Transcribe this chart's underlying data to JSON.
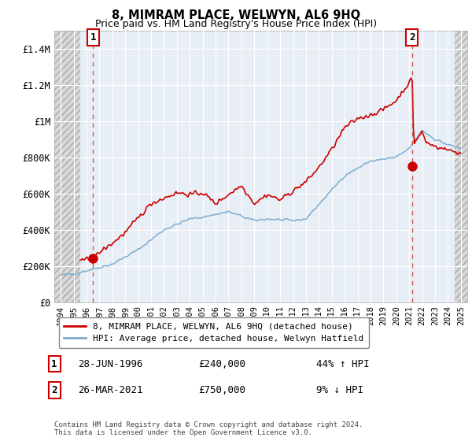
{
  "title": "8, MIMRAM PLACE, WELWYN, AL6 9HQ",
  "subtitle": "Price paid vs. HM Land Registry's House Price Index (HPI)",
  "ylim": [
    0,
    1500000
  ],
  "yticks": [
    0,
    200000,
    400000,
    600000,
    800000,
    1000000,
    1200000,
    1400000
  ],
  "ytick_labels": [
    "£0",
    "£200K",
    "£400K",
    "£600K",
    "£800K",
    "£1M",
    "£1.2M",
    "£1.4M"
  ],
  "xlim_start": 1993.5,
  "xlim_end": 2025.5,
  "hatch_left_end": 1995.5,
  "hatch_right_start": 2024.5,
  "sale1_x": 1996.5,
  "sale1_y": 240000,
  "sale2_x": 2021.23,
  "sale2_y": 750000,
  "sale1_label": "1",
  "sale2_label": "2",
  "line_color_red": "#cc0000",
  "line_color_blue": "#7aabcf",
  "marker_color": "#cc0000",
  "dashed_color": "#cc3333",
  "background_plot": "#e8eef5",
  "hatch_color": "#d8d8d8",
  "grid_color": "#ffffff",
  "legend_line1": "8, MIMRAM PLACE, WELWYN, AL6 9HQ (detached house)",
  "legend_line2": "HPI: Average price, detached house, Welwyn Hatfield",
  "annotation1_date": "28-JUN-1996",
  "annotation1_price": "£240,000",
  "annotation1_hpi": "44% ↑ HPI",
  "annotation2_date": "26-MAR-2021",
  "annotation2_price": "£750,000",
  "annotation2_hpi": "9% ↓ HPI",
  "footer": "Contains HM Land Registry data © Crown copyright and database right 2024.\nThis data is licensed under the Open Government Licence v3.0.",
  "xtick_years": [
    1994,
    1995,
    1996,
    1997,
    1998,
    1999,
    2000,
    2001,
    2002,
    2003,
    2004,
    2005,
    2006,
    2007,
    2008,
    2009,
    2010,
    2011,
    2012,
    2013,
    2014,
    2015,
    2016,
    2017,
    2018,
    2019,
    2020,
    2021,
    2022,
    2023,
    2024,
    2025
  ]
}
